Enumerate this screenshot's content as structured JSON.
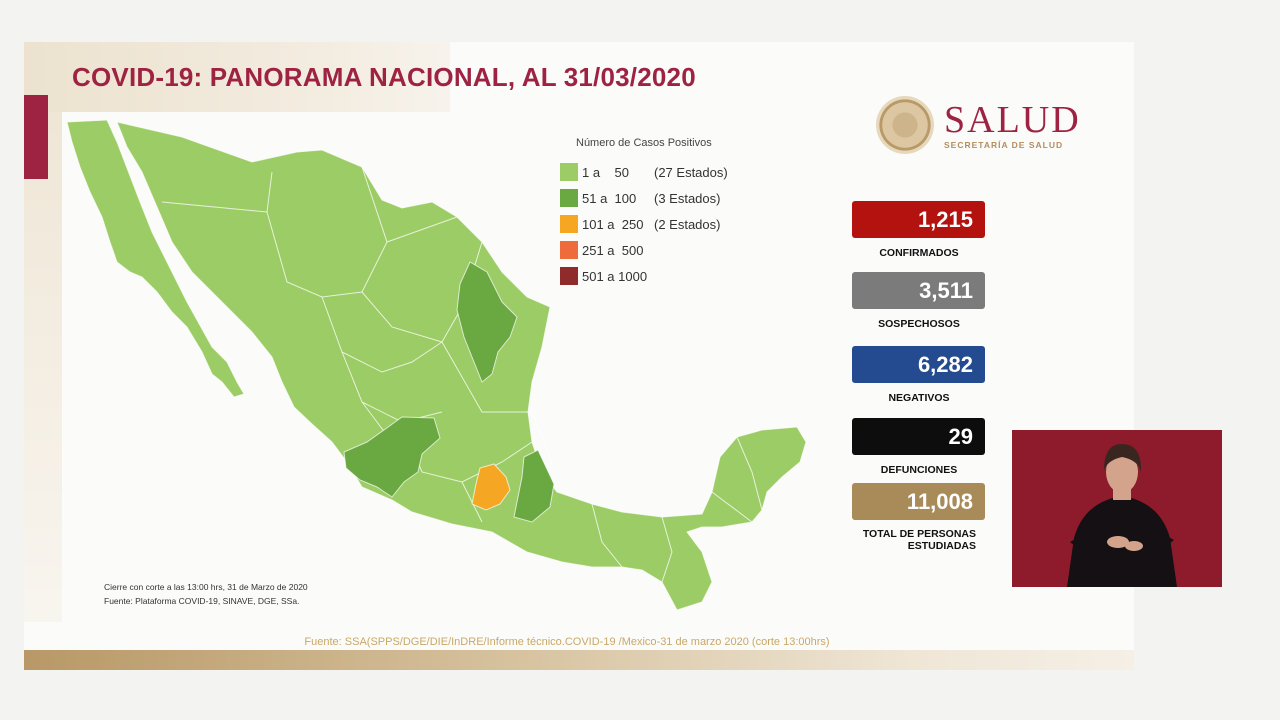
{
  "slide": {
    "title": "COVID-19: PANORAMA NACIONAL, AL 31/03/2020",
    "footer_source": "Fuente: SSA(SPPS/DGE/DIE/InDRE/Informe técnico.COVID-19 /Mexico-31 de marzo 2020 (corte 13:00hrs)"
  },
  "logo": {
    "name": "SALUD",
    "subtitle": "SECRETARÍA DE SALUD"
  },
  "legend": {
    "title": "Número de Casos Positivos",
    "items": [
      {
        "range": "1 a    50",
        "count": "(27 Estados)",
        "color": "#9ccc65"
      },
      {
        "range": "51 a  100",
        "count": "(3 Estados)",
        "color": "#6aa842"
      },
      {
        "range": "101 a  250",
        "count": "(2 Estados)",
        "color": "#f5a623"
      },
      {
        "range": "251 a  500",
        "count": "",
        "color": "#ee6b3c"
      },
      {
        "range": "501 a 1000",
        "count": "",
        "color": "#8f2b2b"
      }
    ]
  },
  "notes": {
    "line1": "Cierre con corte a las 13:00 hrs, 31 de Marzo de 2020",
    "line2": "Fuente: Plataforma COVID-19, SINAVE, DGE, SSa."
  },
  "stats": [
    {
      "value": "1,215",
      "label": "CONFIRMADOS",
      "color": "#b3120f"
    },
    {
      "value": "3,511",
      "label": "SOSPECHOSOS",
      "color": "#7b7b7b"
    },
    {
      "value": "6,282",
      "label": "NEGATIVOS",
      "color": "#244a8f"
    },
    {
      "value": "29",
      "label": "DEFUNCIONES",
      "color": "#0d0d0d"
    },
    {
      "value": "11,008",
      "label_line1": "TOTAL DE PERSONAS",
      "label_line2": "ESTUDIADAS",
      "color": "#a98b5a"
    }
  ],
  "colors": {
    "brand": "#9e2343",
    "gold": "#b38e5d",
    "map_light": "#9ccc65",
    "map_dark": "#6aa842",
    "map_orange": "#f5a623"
  }
}
